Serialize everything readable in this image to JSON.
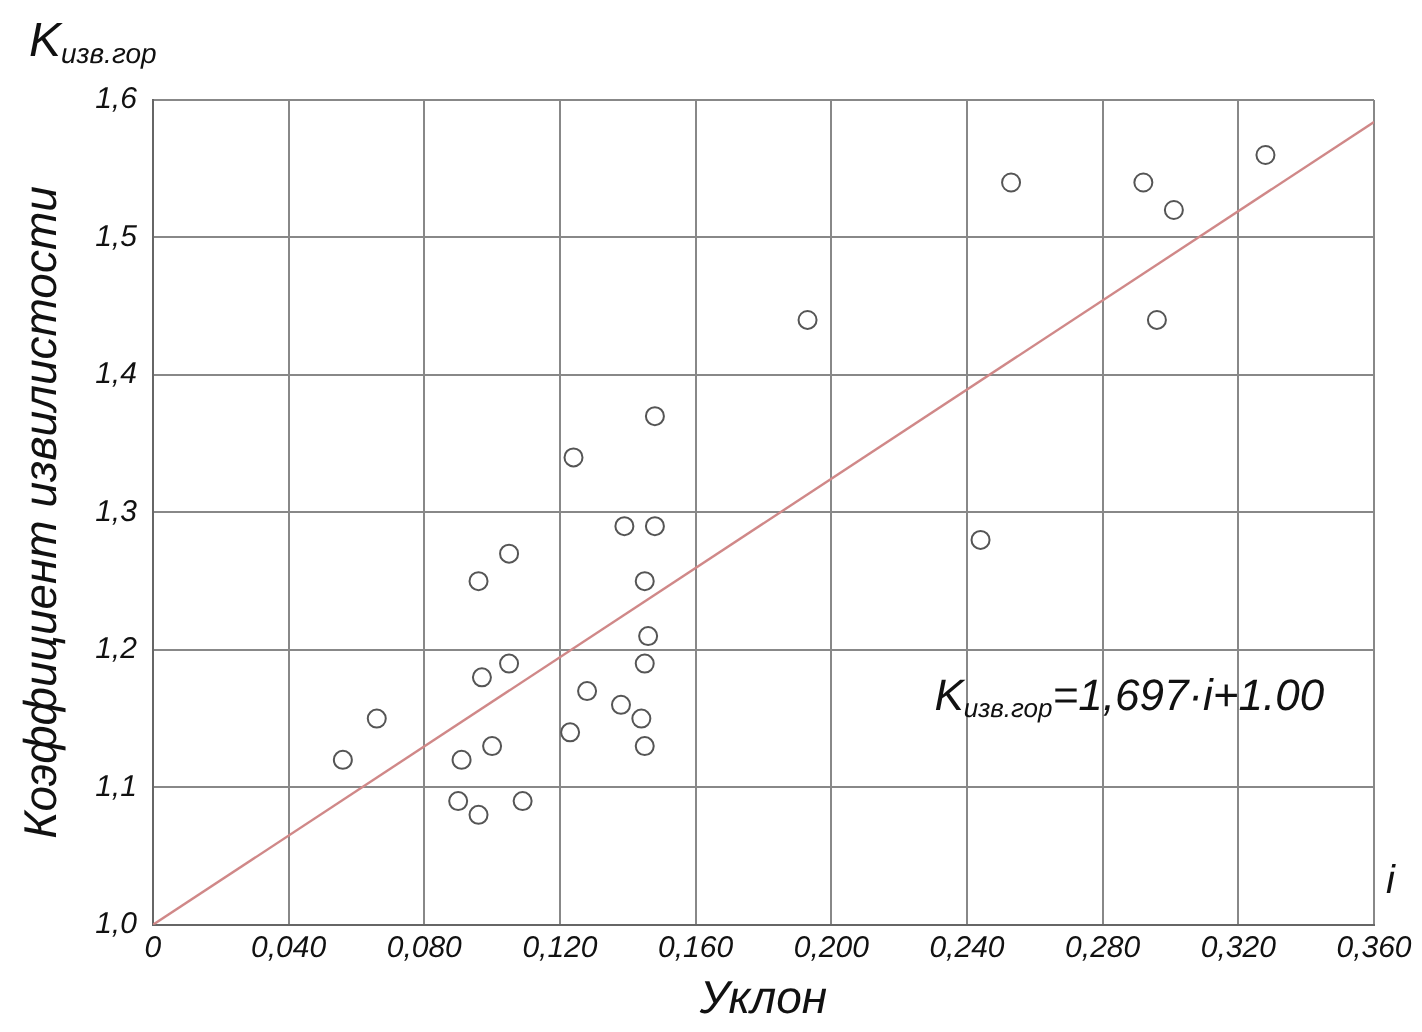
{
  "chart_data": {
    "type": "scatter",
    "xlabel": "Уклон",
    "ylabel": "Коэффициент извилистости",
    "annotations": [
      "K$_{изв.гор}$",
      "i",
      "K$_{изв.гор}$=1,697·i+1.00"
    ],
    "xlim": [
      0,
      0.36
    ],
    "ylim": [
      1.0,
      1.6
    ],
    "xticks": [
      0,
      {
        "value": 0.04,
        "label": "0,040"
      },
      {
        "value": 0.08,
        "label": "0,080"
      },
      {
        "value": 0.12,
        "label": "0,120"
      },
      {
        "value": 0.16,
        "label": "0,160"
      },
      {
        "value": 0.2,
        "label": "0,200"
      },
      {
        "value": 0.24,
        "label": "0,240"
      },
      {
        "value": 0.28,
        "label": "0,280"
      },
      {
        "value": 0.32,
        "label": "0,320"
      },
      {
        "value": 0.36,
        "label": "0,360"
      }
    ],
    "yticks": [
      {
        "value": 1.0,
        "label": "1,0"
      },
      {
        "value": 1.1,
        "label": "1,1"
      },
      {
        "value": 1.2,
        "label": "1,2"
      },
      {
        "value": 1.3,
        "label": "1,3"
      },
      {
        "value": 1.4,
        "label": "1,4"
      },
      {
        "value": 1.5,
        "label": "1,5"
      },
      {
        "value": 1.6,
        "label": "1,6"
      }
    ],
    "grid": true,
    "legend": false,
    "series": [
      {
        "type": "scatter",
        "color": "#555555",
        "marker": "circle",
        "x": [
          0.148,
          0.124,
          0.139,
          0.148,
          0.105,
          0.096,
          0.145,
          0.146,
          0.105,
          0.097,
          0.145,
          0.128,
          0.138,
          0.144,
          0.123,
          0.066,
          0.056,
          0.1,
          0.091,
          0.145,
          0.09,
          0.096,
          0.109,
          0.193,
          0.253,
          0.292,
          0.301,
          0.296,
          0.244,
          0.328
        ],
        "values": [
          1.37,
          1.34,
          1.29,
          1.29,
          1.27,
          1.25,
          1.25,
          1.21,
          1.19,
          1.18,
          1.19,
          1.17,
          1.16,
          1.15,
          1.14,
          1.15,
          1.12,
          1.13,
          1.12,
          1.13,
          1.09,
          1.08,
          1.09,
          1.44,
          1.54,
          1.54,
          1.52,
          1.44,
          1.28,
          1.56
        ]
      },
      {
        "type": "line",
        "color": "#d08888",
        "marker": "none",
        "line_style": "solid",
        "x": [
          0,
          0.36
        ],
        "values": [
          1.0,
          1.584
        ]
      }
    ]
  }
}
